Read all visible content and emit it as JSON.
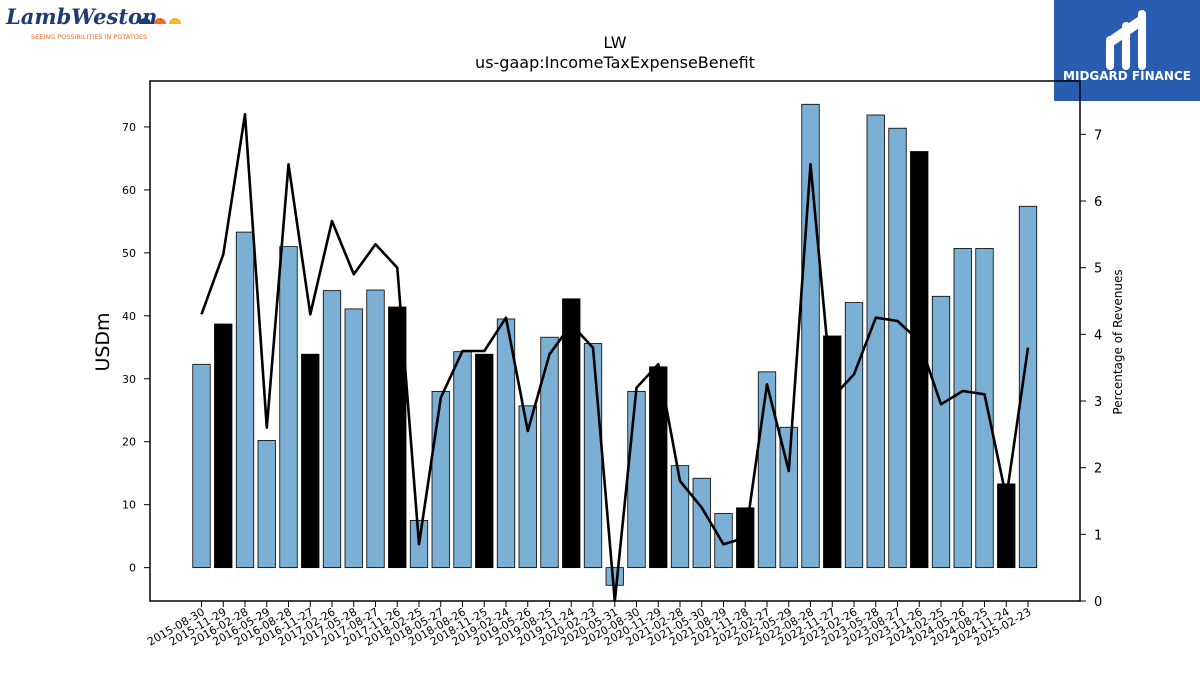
{
  "logos": {
    "left_brand": "LambWeston",
    "left_tagline": "SEEING POSSIBILITIES IN POTATOES",
    "right_brand": "MIDGARD FINANCE"
  },
  "colors": {
    "bar_default": "#7bafd4",
    "bar_highlight": "#000000",
    "line": "#000000",
    "logo_right_bg": "#2a5db0",
    "logo_left_text": "#1f3b73",
    "logo_left_tagline": "#e8702a"
  },
  "chart_data": {
    "type": "bar",
    "title": "LW",
    "subtitle": "us-gaap:IncomeTaxExpenseBenefit",
    "ylabel": "USDm",
    "y2label": "Percentage of Revenues",
    "ylim": [
      -5.3,
      77.3
    ],
    "y2lim": [
      0,
      7.8
    ],
    "yticks": [
      0,
      10,
      20,
      30,
      40,
      50,
      60,
      70
    ],
    "y2ticks": [
      0,
      1,
      2,
      3,
      4,
      5,
      6,
      7
    ],
    "categories": [
      "2015-08-30",
      "2015-11-29",
      "2016-02-28",
      "2016-05-29",
      "2016-08-28",
      "2016-11-27",
      "2017-02-26",
      "2017-05-28",
      "2017-08-27",
      "2017-11-26",
      "2018-02-25",
      "2018-05-27",
      "2018-08-26",
      "2018-11-25",
      "2019-02-24",
      "2019-05-26",
      "2019-08-25",
      "2019-11-24",
      "2020-02-23",
      "2020-05-31",
      "2020-08-30",
      "2020-11-29",
      "2021-02-28",
      "2021-05-30",
      "2021-08-29",
      "2021-11-28",
      "2022-02-27",
      "2022-05-29",
      "2022-08-28",
      "2022-11-27",
      "2023-02-26",
      "2023-05-28",
      "2023-08-27",
      "2023-11-26",
      "2024-02-25",
      "2024-05-26",
      "2024-08-25",
      "2024-11-24",
      "2025-02-23"
    ],
    "series": [
      {
        "kind": "bar",
        "values": [
          32.3,
          38.7,
          53.3,
          20.2,
          51.0,
          33.9,
          44.0,
          41.1,
          44.1,
          41.4,
          7.5,
          28.0,
          34.3,
          33.9,
          39.5,
          25.7,
          36.6,
          42.7,
          35.6,
          -2.8,
          28.0,
          31.9,
          16.2,
          14.2,
          8.6,
          9.5,
          31.1,
          22.3,
          73.6,
          36.8,
          42.1,
          71.9,
          69.8,
          66.1,
          43.1,
          50.7,
          50.7,
          13.3,
          57.4
        ],
        "highlight": [
          false,
          true,
          false,
          false,
          false,
          true,
          false,
          false,
          false,
          true,
          false,
          false,
          false,
          true,
          false,
          false,
          false,
          true,
          false,
          false,
          false,
          true,
          false,
          false,
          false,
          true,
          false,
          false,
          false,
          true,
          false,
          false,
          false,
          true,
          false,
          false,
          false,
          true,
          false
        ]
      },
      {
        "kind": "line",
        "axis": "right",
        "values": [
          4.3,
          5.2,
          7.3,
          2.6,
          6.55,
          4.3,
          5.7,
          4.9,
          5.35,
          5.0,
          0.85,
          3.05,
          3.75,
          3.75,
          4.25,
          2.55,
          3.7,
          4.15,
          3.8,
          0.0,
          3.2,
          3.55,
          1.8,
          1.4,
          0.85,
          0.95,
          3.25,
          1.95,
          6.55,
          3.05,
          3.4,
          4.25,
          4.2,
          3.9,
          2.95,
          3.15,
          3.1,
          1.55,
          3.8
        ]
      }
    ]
  }
}
